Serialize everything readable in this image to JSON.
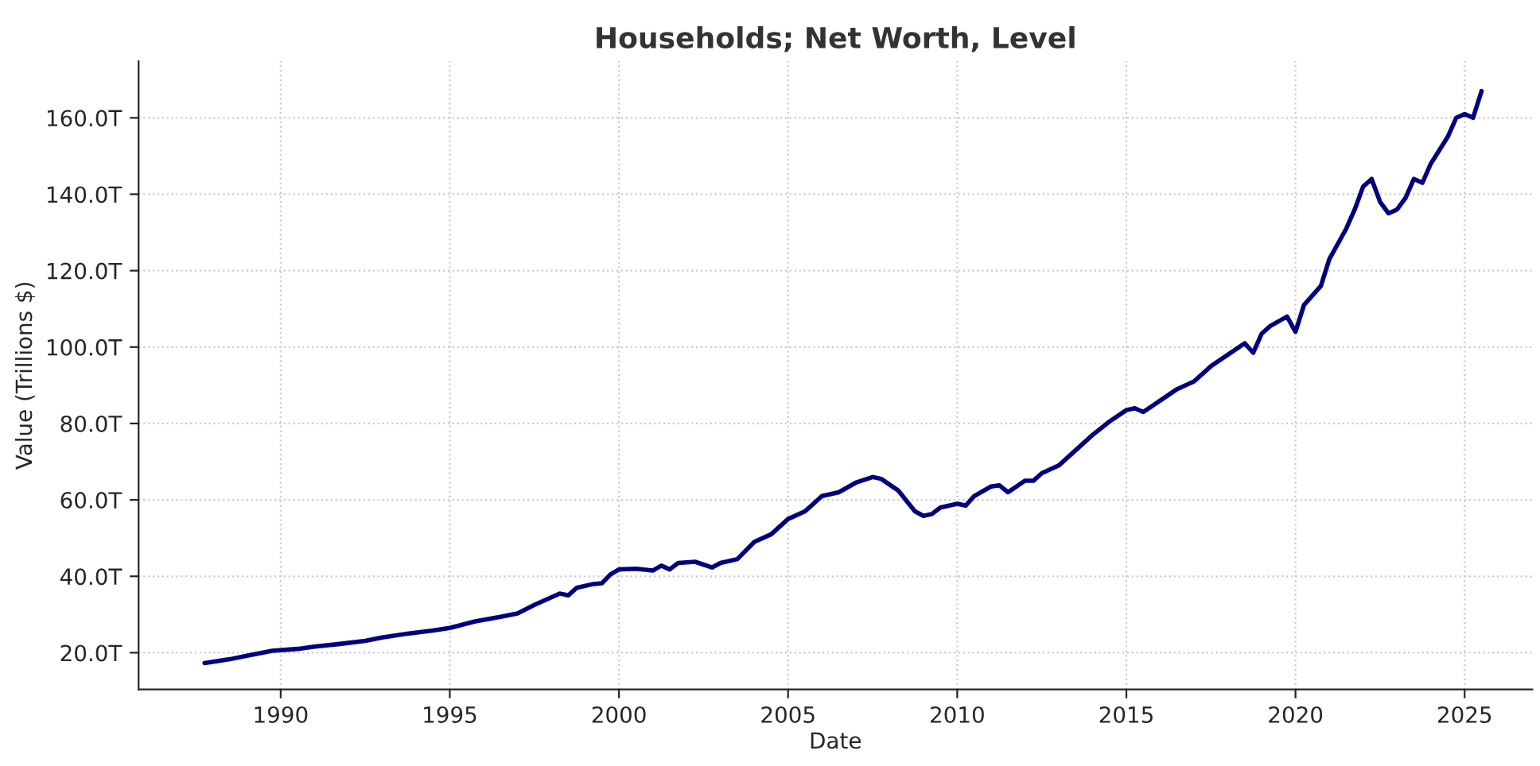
{
  "chart_data": {
    "type": "line",
    "title": "Households; Net Worth, Level",
    "xlabel": "Date",
    "ylabel": "Value (Trillions $)",
    "x": [
      1987.75,
      1988.5,
      1989,
      1989.75,
      1990.5,
      1991,
      1991.75,
      1992.5,
      1993,
      1993.75,
      1994.5,
      1995,
      1995.75,
      1996.5,
      1997,
      1997.5,
      1998,
      1998.25,
      1998.5,
      1998.75,
      1999.25,
      1999.5,
      1999.75,
      2000,
      2000.5,
      2001,
      2001.25,
      2001.5,
      2001.75,
      2002.25,
      2002.75,
      2003,
      2003.5,
      2004,
      2004.5,
      2005,
      2005.5,
      2006,
      2006.5,
      2007,
      2007.5,
      2007.75,
      2008.25,
      2008.75,
      2009,
      2009.25,
      2009.5,
      2010,
      2010.25,
      2010.5,
      2011,
      2011.25,
      2011.5,
      2012,
      2012.25,
      2012.5,
      2013,
      2013.5,
      2014,
      2014.5,
      2015,
      2015.25,
      2015.5,
      2016,
      2016.5,
      2017,
      2017.5,
      2018,
      2018.5,
      2018.75,
      2019,
      2019.25,
      2019.75,
      2020,
      2020.25,
      2020.75,
      2021,
      2021.5,
      2021.75,
      2022,
      2022.25,
      2022.5,
      2022.75,
      2023,
      2023.25,
      2023.5,
      2023.75,
      2024,
      2024.5,
      2024.75,
      2025,
      2025.25,
      2025.5
    ],
    "series": [
      {
        "color": "#000080",
        "values": [
          17.3,
          18.3,
          19.2,
          20.5,
          21.0,
          21.6,
          22.3,
          23.1,
          24.0,
          25.0,
          25.8,
          26.5,
          28.2,
          29.4,
          30.3,
          32.5,
          34.5,
          35.5,
          35,
          37,
          38,
          38.2,
          40.5,
          41.8,
          42,
          41.5,
          42.8,
          41.8,
          43.5,
          43.8,
          42.3,
          43.5,
          44.5,
          49,
          51,
          55,
          57,
          61,
          62,
          64.5,
          66,
          65.5,
          62.5,
          57,
          55.8,
          56.3,
          58,
          59,
          58.5,
          61,
          63.5,
          63.8,
          62,
          65,
          65,
          67,
          69,
          73,
          77,
          80.5,
          83.5,
          84,
          83,
          86,
          89,
          91,
          95,
          98,
          101,
          98.5,
          103.5,
          105.5,
          108,
          104,
          111,
          116,
          123,
          131,
          136,
          142,
          144,
          138,
          135,
          136,
          139,
          144,
          143,
          148,
          155,
          160,
          161,
          160,
          167
        ]
      }
    ],
    "xlim": [
      1985.8,
      2027
    ],
    "xticks": [
      1990,
      1995,
      2000,
      2005,
      2010,
      2015,
      2020,
      2025
    ],
    "ylim": [
      10.4,
      174.8
    ],
    "yticks": [
      {
        "value": 20,
        "label": "20.0T"
      },
      {
        "value": 40,
        "label": "40.0T"
      },
      {
        "value": 60,
        "label": "60.0T"
      },
      {
        "value": 80,
        "label": "80.0T"
      },
      {
        "value": 100,
        "label": "100.0T"
      },
      {
        "value": 120,
        "label": "120.0T"
      },
      {
        "value": 140,
        "label": "140.0T"
      },
      {
        "value": 160,
        "label": "160.0T"
      }
    ],
    "grid": true,
    "line_style": "solid"
  }
}
